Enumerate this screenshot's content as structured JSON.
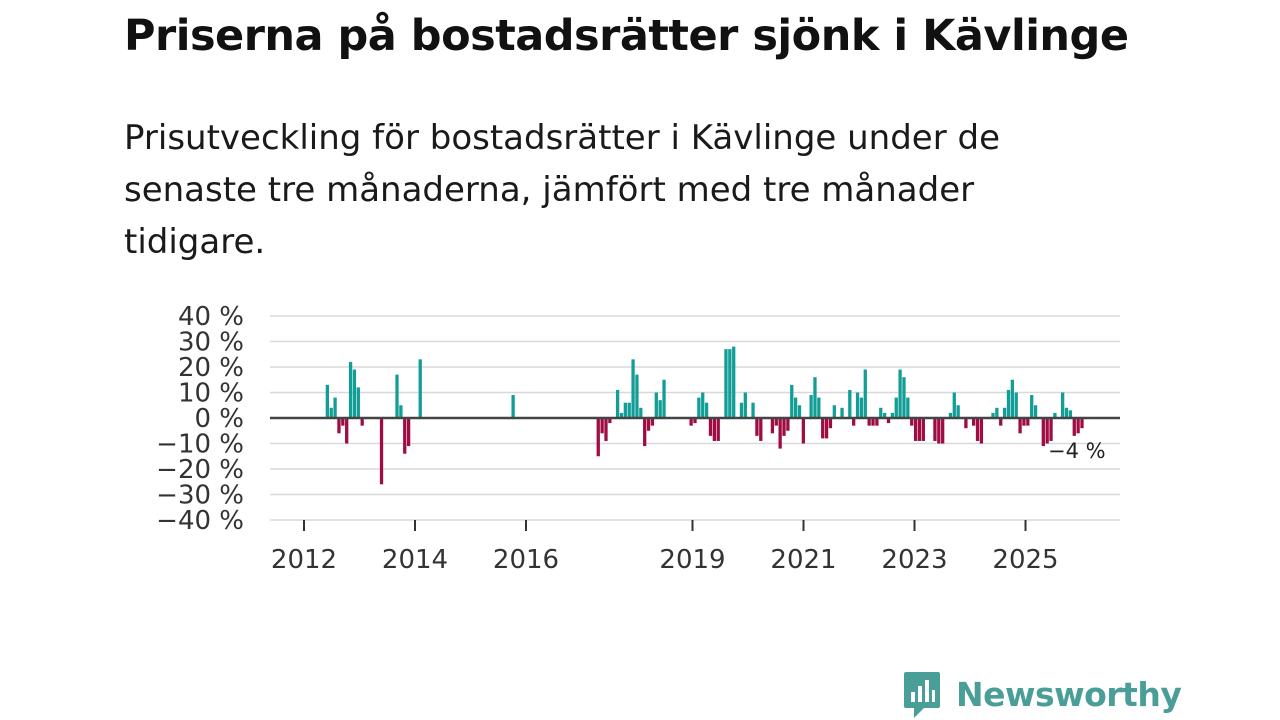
{
  "title": "Priserna på bostadsrätter sjönk i Kävlinge",
  "subtitle": "Prisutveckling för bostadsrätter i Kävlinge under de senaste tre månaderna, jämfört med tre månader tidigare.",
  "colors": {
    "positive": "#129e97",
    "negative": "#9e0c43",
    "grid": "#d9d9d9",
    "zero": "#444444",
    "brand": "#4a9e98"
  },
  "brand": {
    "name": "Newsworthy",
    "icon": "chart-bubble-icon"
  },
  "chart_data": {
    "type": "bar",
    "ylabel": "",
    "xlabel": "",
    "ylim": [
      -40,
      40
    ],
    "grid": true,
    "y_ticks": [
      {
        "value": 40,
        "label": "40 %"
      },
      {
        "value": 30,
        "label": "30 %"
      },
      {
        "value": 20,
        "label": "20 %"
      },
      {
        "value": 10,
        "label": "10 %"
      },
      {
        "value": 0,
        "label": "0 %"
      },
      {
        "value": -10,
        "label": "−10 %"
      },
      {
        "value": -20,
        "label": "−20 %"
      },
      {
        "value": -30,
        "label": "−30 %"
      },
      {
        "value": -40,
        "label": "−40 %"
      }
    ],
    "x_ticks": [
      {
        "value": 2012,
        "label": "2012"
      },
      {
        "value": 2014,
        "label": "2014"
      },
      {
        "value": 2016,
        "label": "2016"
      },
      {
        "value": 2019,
        "label": "2019"
      },
      {
        "value": 2021,
        "label": "2021"
      },
      {
        "value": 2023,
        "label": "2023"
      },
      {
        "value": 2025,
        "label": "2025"
      }
    ],
    "x_start": 2011.5,
    "month_step": 0.0833,
    "values": [
      null,
      null,
      null,
      null,
      null,
      13,
      4,
      8,
      -6,
      -3,
      -10,
      22,
      19,
      12,
      -3,
      null,
      null,
      null,
      null,
      -26,
      null,
      null,
      null,
      17,
      5,
      -14,
      -11,
      null,
      null,
      23,
      null,
      null,
      null,
      null,
      null,
      null,
      null,
      null,
      null,
      null,
      null,
      null,
      null,
      null,
      null,
      null,
      null,
      null,
      null,
      null,
      null,
      null,
      null,
      9,
      null,
      null,
      null,
      null,
      null,
      null,
      null,
      null,
      null,
      null,
      null,
      null,
      null,
      null,
      null,
      null,
      null,
      null,
      null,
      null,
      null,
      -15,
      -6,
      -9,
      -2,
      null,
      11,
      2,
      6,
      6,
      23,
      17,
      4,
      -11,
      -5,
      -3,
      10,
      7,
      15,
      null,
      null,
      null,
      null,
      null,
      null,
      -3,
      -2,
      8,
      10,
      6,
      -7,
      -9,
      -9,
      null,
      27,
      27,
      28,
      null,
      6,
      10,
      null,
      6,
      -7,
      -9,
      null,
      null,
      -6,
      -3,
      -12,
      -7,
      -5,
      13,
      8,
      5,
      -10,
      null,
      9,
      16,
      8,
      -8,
      -8,
      -4,
      5,
      null,
      4,
      null,
      11,
      -3,
      10,
      8,
      19,
      -3,
      -3,
      -3,
      4,
      2,
      -2,
      2,
      8,
      19,
      16,
      8,
      -3,
      -9,
      -9,
      -9,
      null,
      null,
      -9,
      -10,
      -10,
      null,
      2,
      10,
      5,
      null,
      -4,
      null,
      -3,
      -9,
      -10,
      null,
      null,
      2,
      4,
      -3,
      4,
      11,
      15,
      10,
      -6,
      -3,
      -3,
      9,
      5,
      null,
      -11,
      -10,
      -9,
      2,
      null,
      10,
      4,
      3,
      -7,
      -6,
      -4
    ],
    "last_value_label": "−4 %"
  }
}
